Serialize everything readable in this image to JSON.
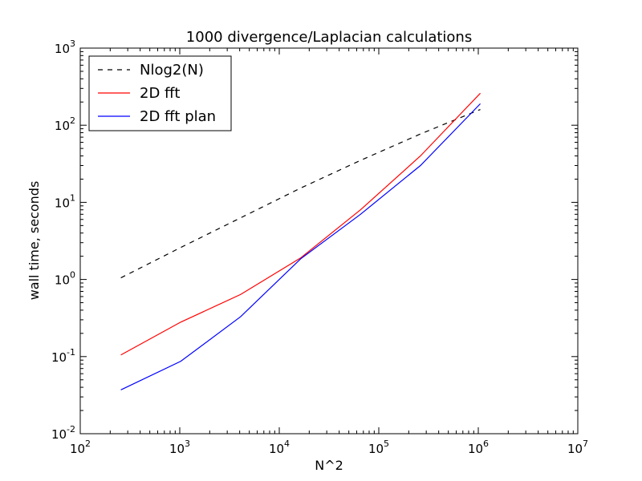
{
  "chart_data": {
    "type": "line",
    "title": "1000 divergence/Laplacian calculations",
    "xlabel": "N^2",
    "ylabel": "wall time, seconds",
    "xscale": "log",
    "yscale": "log",
    "xlim": [
      100,
      10000000
    ],
    "ylim": [
      0.01,
      1000
    ],
    "x_ticks": [
      {
        "base": "10",
        "exp": "2",
        "value": 100
      },
      {
        "base": "10",
        "exp": "3",
        "value": 1000
      },
      {
        "base": "10",
        "exp": "4",
        "value": 10000
      },
      {
        "base": "10",
        "exp": "5",
        "value": 100000
      },
      {
        "base": "10",
        "exp": "6",
        "value": 1000000
      },
      {
        "base": "10",
        "exp": "7",
        "value": 10000000
      }
    ],
    "y_ticks": [
      {
        "base": "10",
        "exp": "-2",
        "value": 0.01
      },
      {
        "base": "10",
        "exp": "-1",
        "value": 0.1
      },
      {
        "base": "10",
        "exp": "0",
        "value": 1
      },
      {
        "base": "10",
        "exp": "1",
        "value": 10
      },
      {
        "base": "10",
        "exp": "2",
        "value": 100
      },
      {
        "base": "10",
        "exp": "3",
        "value": 1000
      }
    ],
    "grid": false,
    "legend_position": "top-left",
    "series": [
      {
        "name": "Nlog2(N)",
        "color": "#000000",
        "style": "dashed",
        "x": [
          256,
          1024,
          4096,
          16384,
          65536,
          262144,
          1048576
        ],
        "y": [
          1.05,
          2.6,
          6.3,
          15.3,
          35,
          77,
          160
        ]
      },
      {
        "name": "2D fft",
        "color": "#ff0000",
        "style": "solid",
        "x": [
          256,
          1024,
          4096,
          16384,
          65536,
          262144,
          1048576
        ],
        "y": [
          0.105,
          0.28,
          0.64,
          1.9,
          8,
          40,
          260
        ]
      },
      {
        "name": "2D fft plan",
        "color": "#0000ff",
        "style": "solid",
        "x": [
          256,
          1024,
          4096,
          16384,
          65536,
          262144,
          1048576
        ],
        "y": [
          0.037,
          0.087,
          0.33,
          1.85,
          7,
          30,
          190
        ]
      }
    ]
  }
}
